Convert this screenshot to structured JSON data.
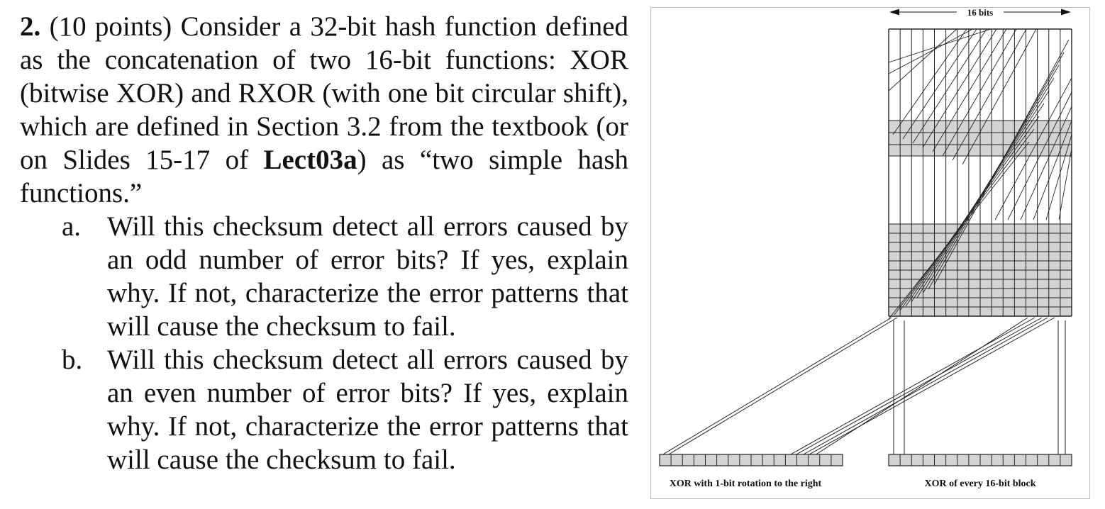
{
  "question": {
    "number": "2.",
    "intro_before_bold": "(10 points) Consider a 32-bit hash function defined as the concatenation of two 16-bit functions: XOR (bitwise XOR) and RXOR (with one bit circular shift), which are defined in Section 3.2 from the textbook (or on Slides 15-17 of ",
    "bold_ref": "Lect03a",
    "intro_after_bold": ") as “two simple hash functions.”",
    "parts": [
      {
        "label": "a.",
        "text": "Will this checksum detect all errors caused by an odd number of error bits? If yes, explain why. If not, characterize the error patterns that will cause the checksum to fail."
      },
      {
        "label": "b.",
        "text": "Will this checksum detect all errors caused by an even number of error bits? If yes, explain why. If not, characterize the error patterns that will cause the checksum to fail."
      }
    ]
  },
  "figure": {
    "width_label": "16 bits",
    "left_caption": "XOR with 1-bit rotation to the right",
    "right_caption": "XOR of every 16-bit block",
    "colors": {
      "shade": "#d3d3d3",
      "line": "#222222",
      "border": "#bbbbbb"
    }
  }
}
